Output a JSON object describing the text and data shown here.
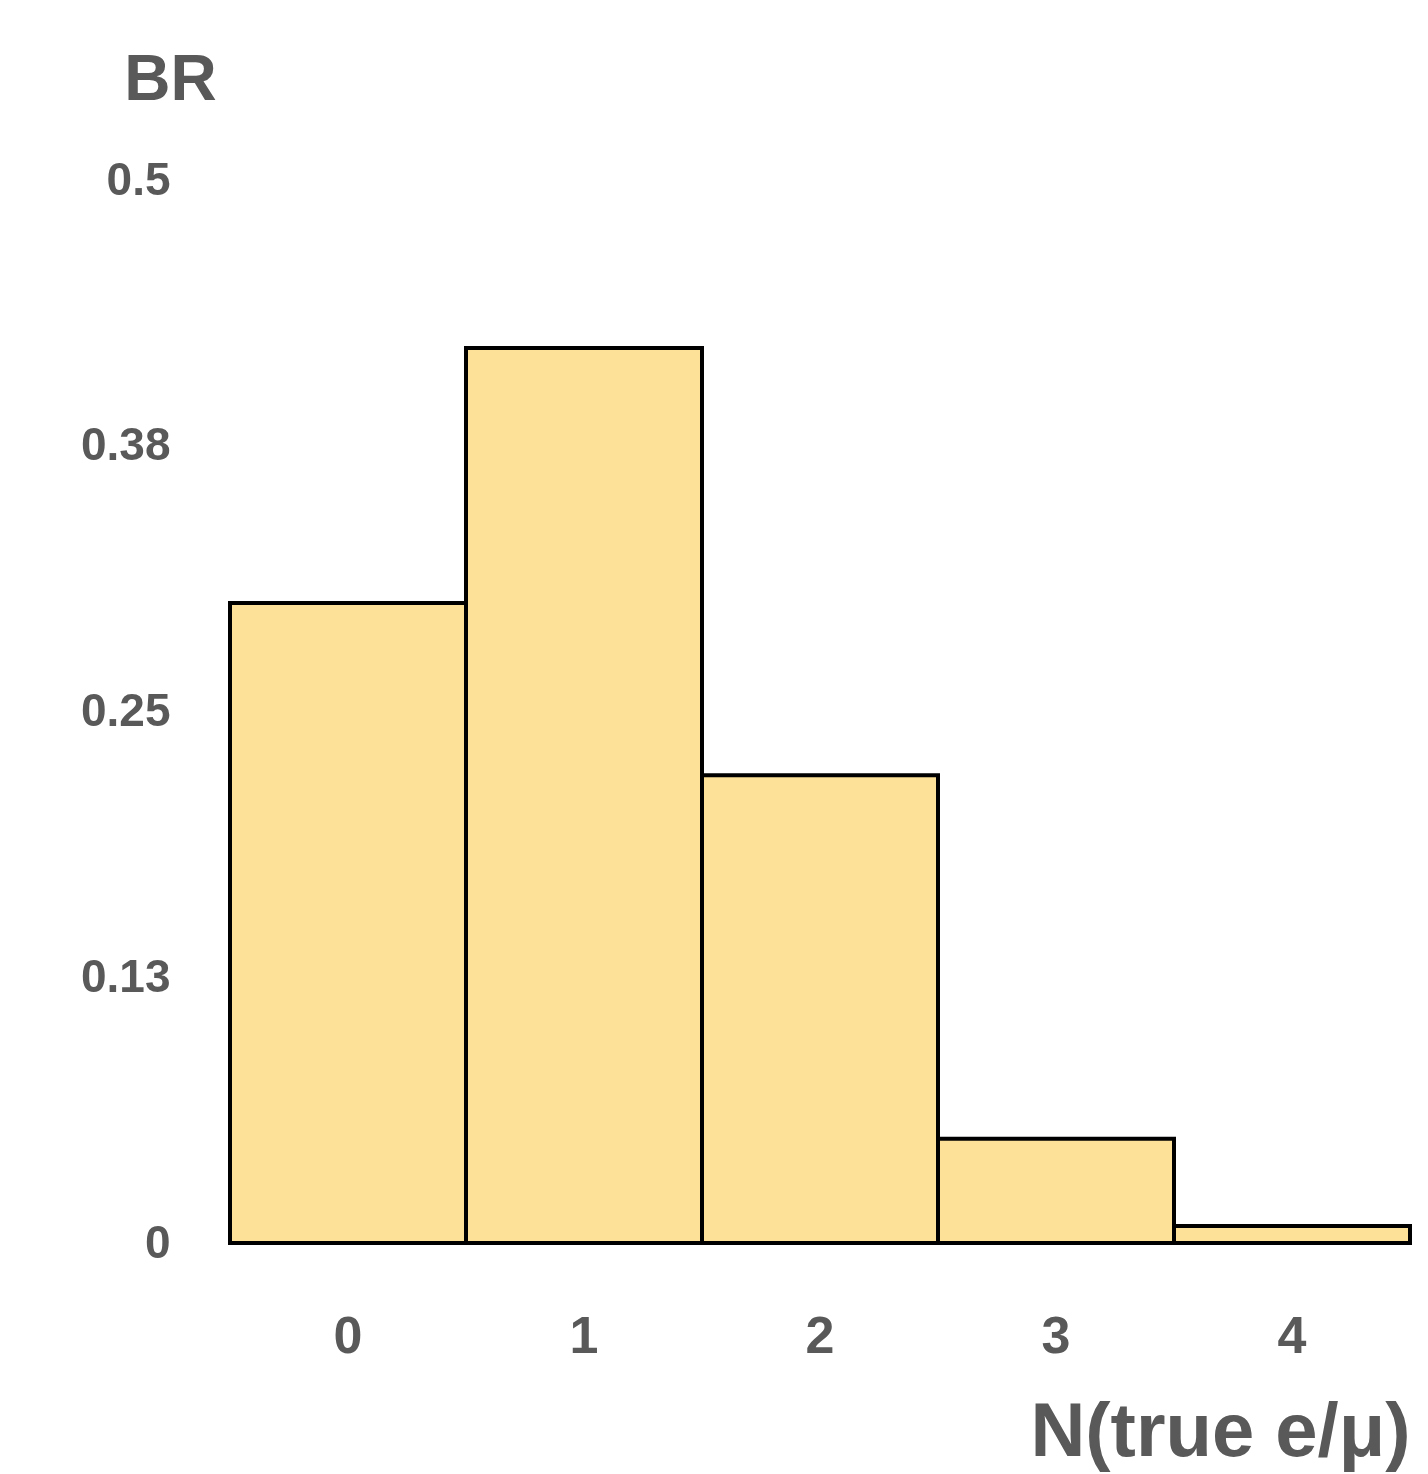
{
  "chart_data": {
    "type": "bar",
    "xlabel": "N(true e/μ)",
    "ylabel": "BR",
    "categories": [
      "0",
      "1",
      "2",
      "3",
      "4"
    ],
    "values": [
      0.301,
      0.421,
      0.22,
      0.049,
      0.008
    ],
    "color": "#fde199",
    "ylim": [
      0,
      0.5
    ],
    "yticks": [
      0,
      {
        "value": 0.125,
        "label": "0.13"
      },
      0.25,
      {
        "value": 0.375,
        "label": "0.38"
      },
      0.5
    ]
  }
}
